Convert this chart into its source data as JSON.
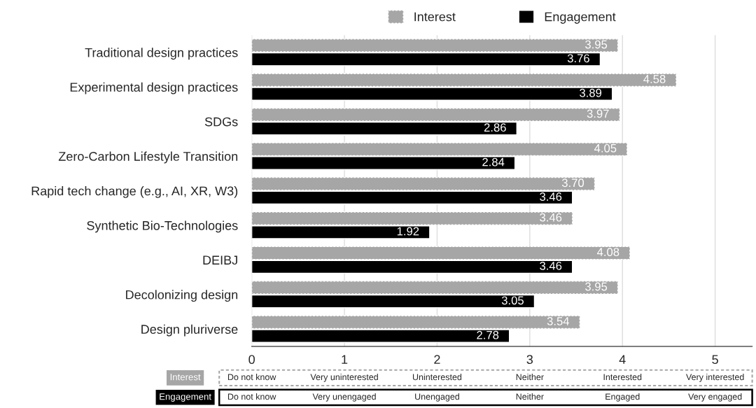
{
  "chart_data": {
    "type": "bar",
    "orientation": "horizontal",
    "categories": [
      "Traditional design practices",
      "Experimental design practices",
      "SDGs",
      "Zero-Carbon Lifestyle Transition",
      "Rapid tech change (e.g., AI, XR, W3)",
      "Synthetic Bio-Technologies",
      "DEIBJ",
      "Decolonizing design",
      "Design pluriverse"
    ],
    "series": [
      {
        "name": "Interest",
        "color": "#a6a6a6",
        "values": [
          3.95,
          4.58,
          3.97,
          4.05,
          3.7,
          3.46,
          4.08,
          3.95,
          3.54
        ],
        "value_labels": [
          "3.95",
          "4.58",
          "3.97",
          "4.05",
          "3.70",
          "3.46",
          "4.08",
          "3.95",
          "3.54"
        ]
      },
      {
        "name": "Engagement",
        "color": "#000000",
        "values": [
          3.76,
          3.89,
          2.86,
          2.84,
          3.46,
          1.92,
          3.46,
          3.05,
          2.78
        ],
        "value_labels": [
          "3.76",
          "3.89",
          "2.86",
          "2.84",
          "3.46",
          "1.92",
          "3.46",
          "3.05",
          "2.78"
        ]
      }
    ],
    "xlim": [
      0,
      5.4
    ],
    "xticks": [
      0,
      1,
      2,
      3,
      4,
      5
    ],
    "grid": "x",
    "legend": "top",
    "annotations": [
      "Interest",
      "Do not know",
      "Very uninterested",
      "Uninterested",
      "Neither",
      "Interested",
      "Very interested",
      "Engagement",
      "Do not know",
      "Very unengaged",
      "Unengaged",
      "Neither",
      "Engaged",
      "Very engaged"
    ]
  }
}
